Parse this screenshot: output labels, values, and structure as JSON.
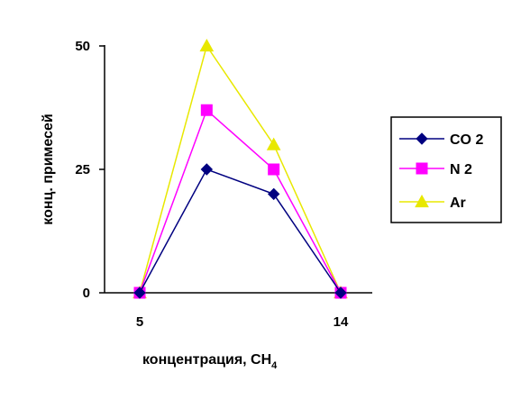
{
  "chart_data": {
    "type": "line",
    "xlabel": "концентрация, СН",
    "xlabel_sub": "4",
    "ylabel": "конц. примесей",
    "ylim": [
      0,
      50
    ],
    "xlim": [
      5,
      14
    ],
    "x_ticks": [
      "5",
      "14"
    ],
    "y_ticks": [
      "0",
      "25",
      "50"
    ],
    "grid": false,
    "legend_position": "right",
    "x": [
      5,
      8,
      11,
      14
    ],
    "series": [
      {
        "name": "CO 2",
        "values": [
          0,
          25,
          20,
          0
        ],
        "color": "#000080",
        "marker": "diamond"
      },
      {
        "name": "N 2",
        "values": [
          0,
          37,
          25,
          0
        ],
        "color": "#ff00ff",
        "marker": "square"
      },
      {
        "name": "Ar",
        "values": [
          0,
          50,
          30,
          0
        ],
        "color": "#e8e800",
        "marker": "triangle"
      }
    ]
  }
}
